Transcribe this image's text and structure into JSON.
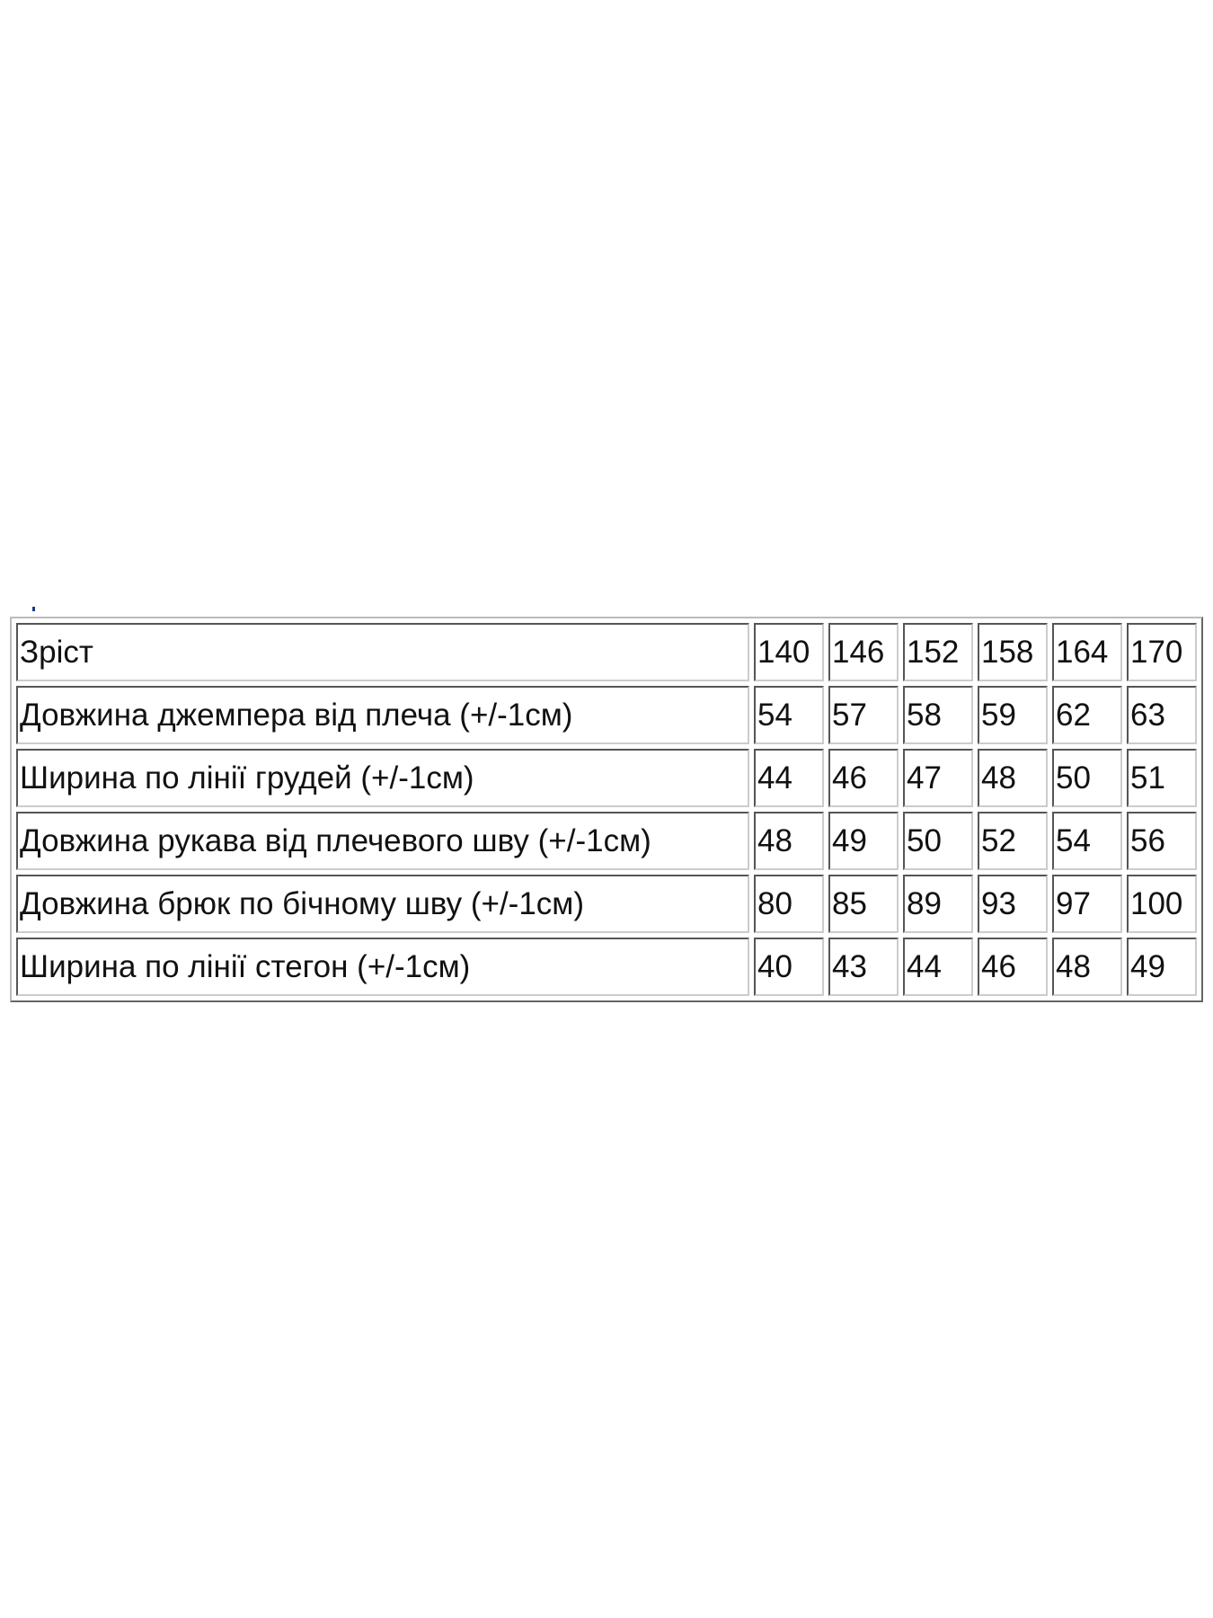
{
  "table": {
    "header": {
      "label": "Зріст",
      "values": [
        "140",
        "146",
        "152",
        "158",
        "164",
        "170"
      ]
    },
    "rows": [
      {
        "label": "Довжина джемпера від плеча (+/-1см)",
        "values": [
          "54",
          "57",
          "58",
          "59",
          "62",
          "63"
        ]
      },
      {
        "label": "Ширина по лінії грудей (+/-1см)",
        "values": [
          "44",
          "46",
          "47",
          "48",
          "50",
          "51"
        ]
      },
      {
        "label": "Довжина рукава від плечевого шву (+/-1см)",
        "values": [
          "48",
          "49",
          "50",
          "52",
          "54",
          "56"
        ]
      },
      {
        "label": "Довжина брюк по бічному шву (+/-1см)",
        "values": [
          "80",
          "85",
          "89",
          "93",
          "97",
          "100"
        ]
      },
      {
        "label": "Ширина по лінії стегон (+/-1см)",
        "values": [
          "40",
          "43",
          "44",
          "46",
          "48",
          "49"
        ]
      }
    ]
  }
}
